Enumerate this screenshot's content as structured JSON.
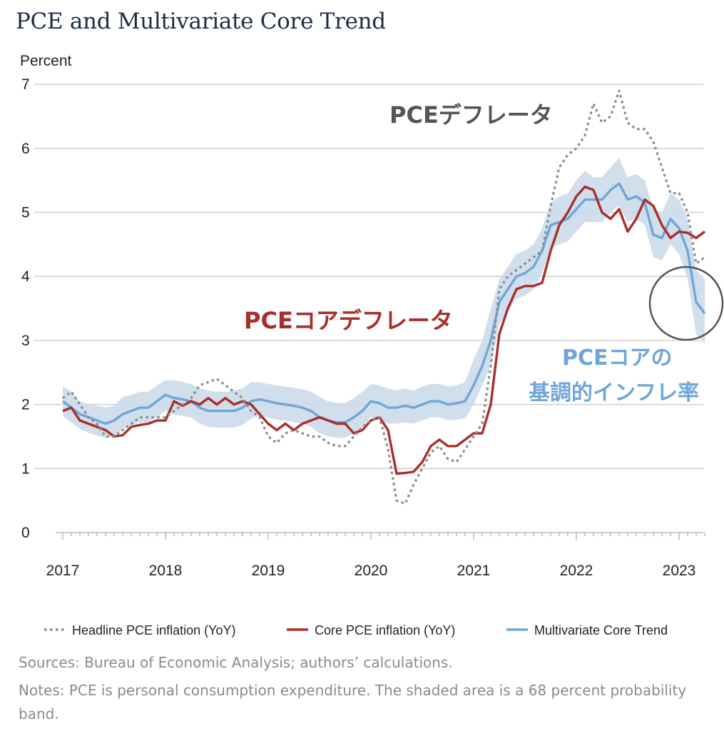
{
  "title": "PCE and Multivariate Core Trend",
  "notes": {
    "sources": "Sources: Bureau of Economic Analysis; authors’ calculations.",
    "notes": "Notes: PCE is personal consumption expenditure. The shaded area is a 68 percent probability band."
  },
  "annotations": {
    "headline": "PCEデフレータ",
    "core": "PCEコアデフレータ",
    "mct_line1": "PCEコアの",
    "mct_line2": "基調的インフレ率"
  },
  "colors": {
    "headline": "#8c8c8c",
    "core": "#a8302c",
    "mct": "#6fa6d9",
    "band": "#c9d9ea",
    "headline_label": "#555555",
    "core_label": "#a8302c",
    "mct_label": "#6fa6d9",
    "circle": "#555555"
  },
  "chart_data": {
    "type": "line",
    "title": "PCE and Multivariate Core Trend",
    "ylabel": "Percent",
    "xlabel": "",
    "ylim": [
      0,
      7
    ],
    "y_ticks": [
      "0",
      "1",
      "2",
      "3",
      "4",
      "5",
      "6",
      "7"
    ],
    "x_tick_labels": [
      "2017",
      "2018",
      "2019",
      "2020",
      "2021",
      "2022",
      "2023"
    ],
    "x_range": [
      "2017-01",
      "2023-04"
    ],
    "grid": true,
    "legend_position": "bottom",
    "x": [
      "2017-01",
      "2017-02",
      "2017-03",
      "2017-04",
      "2017-05",
      "2017-06",
      "2017-07",
      "2017-08",
      "2017-09",
      "2017-10",
      "2017-11",
      "2017-12",
      "2018-01",
      "2018-02",
      "2018-03",
      "2018-04",
      "2018-05",
      "2018-06",
      "2018-07",
      "2018-08",
      "2018-09",
      "2018-10",
      "2018-11",
      "2018-12",
      "2019-01",
      "2019-02",
      "2019-03",
      "2019-04",
      "2019-05",
      "2019-06",
      "2019-07",
      "2019-08",
      "2019-09",
      "2019-10",
      "2019-11",
      "2019-12",
      "2020-01",
      "2020-02",
      "2020-03",
      "2020-04",
      "2020-05",
      "2020-06",
      "2020-07",
      "2020-08",
      "2020-09",
      "2020-10",
      "2020-11",
      "2020-12",
      "2021-01",
      "2021-02",
      "2021-03",
      "2021-04",
      "2021-05",
      "2021-06",
      "2021-07",
      "2021-08",
      "2021-09",
      "2021-10",
      "2021-11",
      "2021-12",
      "2022-01",
      "2022-02",
      "2022-03",
      "2022-04",
      "2022-05",
      "2022-06",
      "2022-07",
      "2022-08",
      "2022-09",
      "2022-10",
      "2022-11",
      "2022-12",
      "2023-01",
      "2023-02",
      "2023-03",
      "2023-04"
    ],
    "series": [
      {
        "name": "Headline PCE inflation (YoY)",
        "style": "dotted",
        "values": [
          2.1,
          2.2,
          2.0,
          1.8,
          1.7,
          1.5,
          1.5,
          1.6,
          1.7,
          1.8,
          1.8,
          1.8,
          1.8,
          1.9,
          2.0,
          2.1,
          2.3,
          2.35,
          2.4,
          2.3,
          2.2,
          2.1,
          1.9,
          1.8,
          1.5,
          1.4,
          1.55,
          1.6,
          1.55,
          1.5,
          1.5,
          1.4,
          1.35,
          1.35,
          1.5,
          1.65,
          1.75,
          1.8,
          1.3,
          0.5,
          0.45,
          0.75,
          1.0,
          1.25,
          1.35,
          1.15,
          1.1,
          1.3,
          1.5,
          1.7,
          2.6,
          3.8,
          4.0,
          4.1,
          4.2,
          4.3,
          4.4,
          5.1,
          5.7,
          5.9,
          6.0,
          6.2,
          6.7,
          6.4,
          6.5,
          6.9,
          6.4,
          6.3,
          6.3,
          6.1,
          5.7,
          5.3,
          5.3,
          5.0,
          4.2,
          4.3
        ]
      },
      {
        "name": "Core PCE inflation (YoY)",
        "style": "solid",
        "values": [
          1.9,
          1.95,
          1.75,
          1.7,
          1.65,
          1.6,
          1.5,
          1.52,
          1.65,
          1.68,
          1.7,
          1.75,
          1.75,
          2.05,
          1.98,
          2.05,
          2.0,
          2.1,
          2.0,
          2.1,
          2.0,
          2.05,
          2.0,
          1.85,
          1.7,
          1.6,
          1.7,
          1.6,
          1.7,
          1.75,
          1.8,
          1.75,
          1.7,
          1.7,
          1.55,
          1.6,
          1.75,
          1.8,
          1.6,
          0.92,
          0.93,
          0.95,
          1.1,
          1.35,
          1.45,
          1.35,
          1.35,
          1.45,
          1.55,
          1.55,
          2.0,
          3.1,
          3.5,
          3.8,
          3.85,
          3.85,
          3.9,
          4.4,
          4.8,
          5.0,
          5.25,
          5.4,
          5.35,
          5.0,
          4.9,
          5.05,
          4.7,
          4.9,
          5.2,
          5.1,
          4.8,
          4.6,
          4.7,
          4.68,
          4.6,
          4.7
        ]
      },
      {
        "name": "Multivariate Core Trend",
        "style": "solid",
        "values": [
          2.05,
          1.95,
          1.85,
          1.8,
          1.75,
          1.7,
          1.75,
          1.85,
          1.9,
          1.95,
          1.95,
          2.05,
          2.15,
          2.1,
          2.08,
          2.05,
          1.95,
          1.9,
          1.9,
          1.9,
          1.9,
          1.95,
          2.05,
          2.08,
          2.05,
          2.02,
          2.0,
          1.98,
          1.95,
          1.9,
          1.8,
          1.75,
          1.72,
          1.72,
          1.8,
          1.9,
          2.05,
          2.02,
          1.95,
          1.95,
          1.98,
          1.95,
          2.0,
          2.05,
          2.05,
          2.0,
          2.02,
          2.05,
          2.3,
          2.6,
          3.0,
          3.6,
          3.8,
          4.0,
          4.05,
          4.15,
          4.4,
          4.8,
          4.85,
          4.9,
          5.05,
          5.2,
          5.2,
          5.2,
          5.35,
          5.45,
          5.2,
          5.25,
          5.15,
          4.65,
          4.6,
          4.9,
          4.75,
          4.4,
          3.6,
          3.42
        ]
      }
    ],
    "band": {
      "name": "68 percent probability band",
      "upper": [
        2.28,
        2.2,
        2.05,
        2.0,
        1.98,
        1.95,
        1.98,
        2.12,
        2.15,
        2.2,
        2.2,
        2.3,
        2.38,
        2.38,
        2.35,
        2.32,
        2.25,
        2.22,
        2.2,
        2.2,
        2.22,
        2.25,
        2.35,
        2.35,
        2.32,
        2.3,
        2.28,
        2.26,
        2.24,
        2.2,
        2.12,
        2.05,
        2.02,
        2.02,
        2.1,
        2.2,
        2.32,
        2.3,
        2.25,
        2.22,
        2.25,
        2.22,
        2.28,
        2.32,
        2.32,
        2.28,
        2.3,
        2.35,
        2.7,
        3.0,
        3.5,
        3.95,
        4.15,
        4.35,
        4.4,
        4.5,
        4.75,
        5.15,
        5.25,
        5.3,
        5.5,
        5.65,
        5.55,
        5.55,
        5.7,
        5.85,
        5.55,
        5.6,
        5.5,
        5.05,
        5.0,
        5.3,
        5.2,
        4.9,
        4.1,
        3.95
      ],
      "lower": [
        1.82,
        1.72,
        1.62,
        1.56,
        1.52,
        1.47,
        1.52,
        1.62,
        1.67,
        1.72,
        1.72,
        1.8,
        1.9,
        1.84,
        1.82,
        1.8,
        1.7,
        1.65,
        1.64,
        1.64,
        1.64,
        1.68,
        1.78,
        1.82,
        1.8,
        1.76,
        1.75,
        1.72,
        1.7,
        1.65,
        1.55,
        1.5,
        1.48,
        1.48,
        1.55,
        1.65,
        1.8,
        1.76,
        1.7,
        1.7,
        1.72,
        1.7,
        1.75,
        1.8,
        1.8,
        1.75,
        1.76,
        1.78,
        2.0,
        2.3,
        2.6,
        3.25,
        3.45,
        3.65,
        3.7,
        3.8,
        4.05,
        4.45,
        4.5,
        4.55,
        4.7,
        4.85,
        4.85,
        4.85,
        5.0,
        5.1,
        4.85,
        4.9,
        4.8,
        4.3,
        4.25,
        4.5,
        4.35,
        3.95,
        3.1,
        2.95
      ]
    }
  }
}
